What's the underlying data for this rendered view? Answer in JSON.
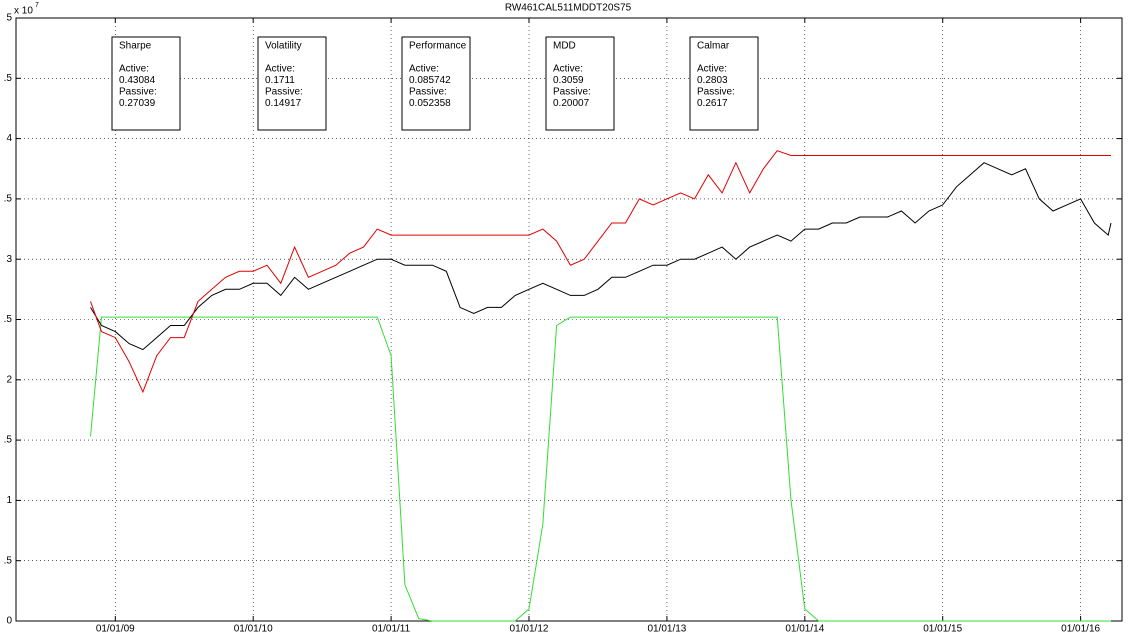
{
  "chart_data": {
    "type": "line",
    "title": "RW461CAL511MDDT20S75",
    "multiplier": "x 10",
    "exponent": "7",
    "x": [
      2008.82,
      2008.9,
      2009,
      2009.1,
      2009.2,
      2009.3,
      2009.4,
      2009.5,
      2009.6,
      2009.7,
      2009.8,
      2009.9,
      2010,
      2010.1,
      2010.2,
      2010.3,
      2010.4,
      2010.5,
      2010.6,
      2010.7,
      2010.8,
      2010.9,
      2011,
      2011.1,
      2011.2,
      2011.3,
      2011.4,
      2011.5,
      2011.6,
      2011.7,
      2011.8,
      2011.9,
      2012,
      2012.1,
      2012.2,
      2012.3,
      2012.4,
      2012.5,
      2012.6,
      2012.7,
      2012.8,
      2012.9,
      2013,
      2013.1,
      2013.2,
      2013.3,
      2013.4,
      2013.5,
      2013.6,
      2013.7,
      2013.8,
      2013.9,
      2014,
      2014.1,
      2014.2,
      2014.3,
      2014.4,
      2014.5,
      2014.6,
      2014.7,
      2014.8,
      2014.9,
      2015,
      2015.1,
      2015.2,
      2015.3,
      2015.4,
      2015.5,
      2015.6,
      2015.7,
      2015.8,
      2015.9,
      2016,
      2016.1,
      2016.2,
      2016.22
    ],
    "series": [
      {
        "color": "#000000",
        "values": [
          2.6,
          2.45,
          2.4,
          2.3,
          2.25,
          2.35,
          2.45,
          2.45,
          2.6,
          2.7,
          2.75,
          2.75,
          2.8,
          2.8,
          2.7,
          2.85,
          2.75,
          2.8,
          2.85,
          2.9,
          2.95,
          3.0,
          3.0,
          2.95,
          2.95,
          2.95,
          2.9,
          2.6,
          2.55,
          2.6,
          2.6,
          2.7,
          2.75,
          2.8,
          2.75,
          2.7,
          2.7,
          2.75,
          2.85,
          2.85,
          2.9,
          2.95,
          2.95,
          3.0,
          3.0,
          3.05,
          3.1,
          3.0,
          3.1,
          3.15,
          3.2,
          3.15,
          3.25,
          3.25,
          3.3,
          3.3,
          3.35,
          3.35,
          3.35,
          3.4,
          3.3,
          3.4,
          3.45,
          3.6,
          3.7,
          3.8,
          3.75,
          3.7,
          3.75,
          3.5,
          3.4,
          3.45,
          3.5,
          3.3,
          3.2,
          3.3
        ]
      },
      {
        "color": "#e00000",
        "values": [
          2.65,
          2.4,
          2.35,
          2.15,
          1.9,
          2.2,
          2.35,
          2.35,
          2.65,
          2.75,
          2.85,
          2.9,
          2.9,
          2.95,
          2.8,
          3.1,
          2.85,
          2.9,
          2.95,
          3.05,
          3.1,
          3.25,
          3.2,
          3.2,
          3.2,
          3.2,
          3.2,
          3.2,
          3.2,
          3.2,
          3.2,
          3.2,
          3.2,
          3.25,
          3.15,
          2.95,
          3.0,
          3.15,
          3.3,
          3.3,
          3.5,
          3.45,
          3.5,
          3.55,
          3.5,
          3.7,
          3.55,
          3.8,
          3.55,
          3.75,
          3.9,
          3.86,
          3.86,
          3.86,
          3.86,
          3.86,
          3.86,
          3.86,
          3.86,
          3.86,
          3.86,
          3.86,
          3.86,
          3.86,
          3.86,
          3.86,
          3.86,
          3.86,
          3.86,
          3.86,
          3.86,
          3.86,
          3.86,
          3.86,
          3.86,
          3.86
        ]
      },
      {
        "color": "#33dd33",
        "values": [
          1.53,
          2.52,
          2.52,
          2.52,
          2.52,
          2.52,
          2.52,
          2.52,
          2.52,
          2.52,
          2.52,
          2.52,
          2.52,
          2.52,
          2.52,
          2.52,
          2.52,
          2.52,
          2.52,
          2.52,
          2.52,
          2.52,
          2.2,
          0.3,
          0.02,
          0,
          0,
          0,
          0,
          0,
          0,
          0,
          0.1,
          0.8,
          2.45,
          2.52,
          2.52,
          2.52,
          2.52,
          2.52,
          2.52,
          2.52,
          2.52,
          2.52,
          2.52,
          2.52,
          2.52,
          2.52,
          2.52,
          2.52,
          2.52,
          1.0,
          0.1,
          0,
          0,
          0,
          0,
          0,
          0,
          0,
          0,
          0,
          0,
          0,
          0,
          0,
          0,
          0,
          0,
          0,
          0,
          0,
          0,
          0,
          0,
          0
        ]
      }
    ],
    "xlim": [
      2008.28,
      2016.3
    ],
    "xticks": [
      {
        "value": 2009,
        "label": "01/01/09"
      },
      {
        "value": 2010,
        "label": "01/01/10"
      },
      {
        "value": 2011,
        "label": "01/01/11"
      },
      {
        "value": 2012,
        "label": "01/01/12"
      },
      {
        "value": 2013,
        "label": "01/01/13"
      },
      {
        "value": 2014,
        "label": "01/01/14"
      },
      {
        "value": 2015,
        "label": "01/01/15"
      },
      {
        "value": 2016,
        "label": "01/01/16"
      }
    ],
    "ylim": [
      0,
      5
    ],
    "yticks": [
      0,
      {
        "value": 0.5,
        "label": ".5"
      },
      1,
      {
        "value": 1.5,
        "label": ".5"
      },
      2,
      {
        "value": 2.5,
        "label": ".5"
      },
      3,
      {
        "value": 3.5,
        "label": ".5"
      },
      4,
      {
        "value": 4.5,
        "label": ".5"
      },
      5
    ],
    "grid": true,
    "annotations": [
      {
        "title": "Sharpe",
        "lines": [
          "Active:",
          "0.43084",
          "Passive:",
          "0.27039"
        ]
      },
      {
        "title": "Volatility",
        "lines": [
          "Active:",
          "0.1711",
          "Passive:",
          "0.14917"
        ]
      },
      {
        "title": "Performance",
        "lines": [
          "Active:",
          "0.085742",
          "Passive:",
          "0.052358"
        ]
      },
      {
        "title": "MDD",
        "lines": [
          "Active:",
          "0.3059",
          "Passive:",
          "0.20007"
        ]
      },
      {
        "title": "Calmar",
        "lines": [
          "Active:",
          "0.2803",
          "Passive:",
          "0.2617"
        ]
      }
    ]
  }
}
